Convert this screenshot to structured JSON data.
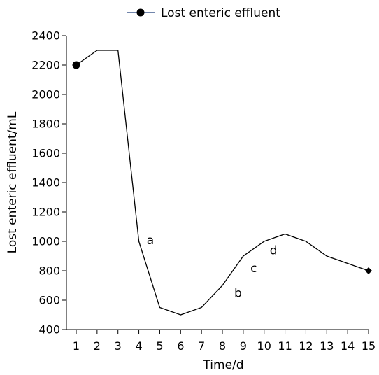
{
  "chart_data": {
    "type": "line",
    "xlabel": "Time/d",
    "ylabel": "Lost enteric effluent/mL",
    "x": [
      1,
      2,
      3,
      4,
      5,
      6,
      7,
      8,
      9,
      10,
      11,
      12,
      13,
      14,
      15
    ],
    "xlim": [
      1,
      15
    ],
    "ylim": [
      400,
      2400
    ],
    "yticks": [
      400,
      600,
      800,
      1000,
      1200,
      1400,
      1600,
      1800,
      2000,
      2200,
      2400
    ],
    "series": [
      {
        "name": "Lost enteric effluent",
        "color": "#000000",
        "values": [
          2200,
          2300,
          2300,
          1000,
          550,
          500,
          550,
          700,
          900,
          1000,
          1050,
          1000,
          900,
          850,
          800
        ],
        "markers": {
          "start": "circle",
          "end": "diamond"
        }
      }
    ],
    "legend": {
      "label": "Lost enteric effluent",
      "placement": "top-center",
      "line_color": "#1f3f7a"
    },
    "annotations": [
      {
        "text": "a",
        "x": 4.55,
        "y": 1010
      },
      {
        "text": "b",
        "x": 8.75,
        "y": 650
      },
      {
        "text": "c",
        "x": 9.5,
        "y": 820
      },
      {
        "text": "d",
        "x": 10.45,
        "y": 940
      }
    ],
    "grid": false
  }
}
